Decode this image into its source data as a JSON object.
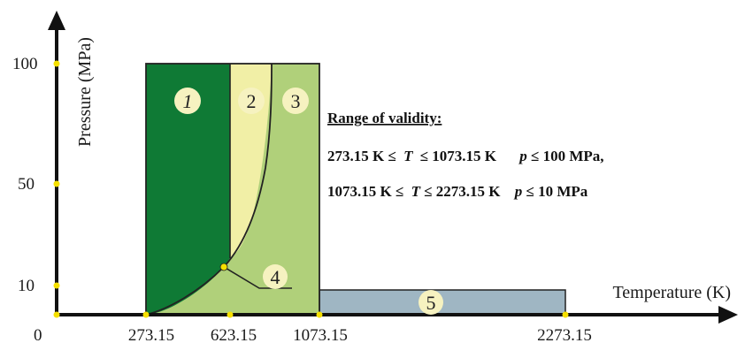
{
  "diagram": {
    "axes": {
      "y_title": "Pressure (MPa)",
      "x_title": "Temperature (K)",
      "y_ticks": [
        "100",
        "50",
        "10",
        "0"
      ],
      "x_ticks": [
        "273.15",
        "623.15",
        "1073.15",
        "2273.15"
      ]
    },
    "regions": [
      {
        "id": "1",
        "label": "1",
        "color": "#0f7a35"
      },
      {
        "id": "2",
        "label": "2",
        "color": "#f1efa6"
      },
      {
        "id": "3",
        "label": "3",
        "color": "#b0d07a"
      },
      {
        "id": "4",
        "label": "4",
        "color": "#b0d07a"
      },
      {
        "id": "5",
        "label": "5",
        "color": "#9fb6c3"
      }
    ],
    "validity": {
      "title": "Range of validity:",
      "line1_left": "273.15 K ≤",
      "line1_T": "T",
      "line1_mid": " ≤ 1073.15 K",
      "line1_p": "p",
      "line1_right": " ≤  100 MPa,",
      "line2_left": "1073.15 K ≤",
      "line2_T": "T",
      "line2_mid": " ≤ 2273.15 K",
      "line2_p": "p",
      "line2_right": " ≤  10 MPa"
    },
    "colors": {
      "axis": "#111111",
      "tick_dot": "#f5e000",
      "label_circle_fill": "#f6f2c0"
    }
  }
}
